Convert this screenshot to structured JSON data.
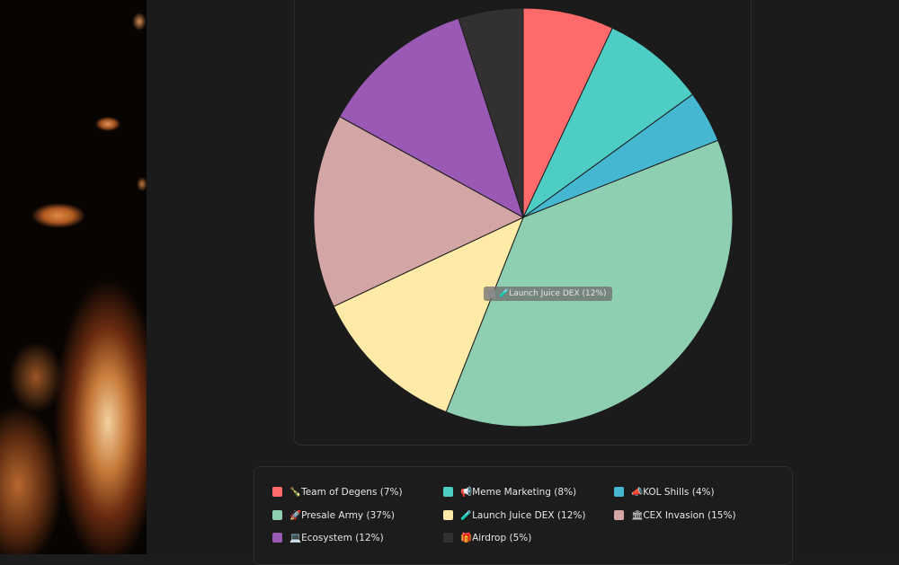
{
  "tooltip": {
    "text": "🧪Launch Juice DEX (12%)"
  },
  "chart_data": {
    "type": "pie",
    "title": "",
    "slices": [
      {
        "label": "🍾Team of Degens (7%)",
        "value": 7,
        "color": "#ff6b6b"
      },
      {
        "label": "📢Meme Marketing (8%)",
        "value": 8,
        "color": "#4ecdc4"
      },
      {
        "label": "📣KOL Shills (4%)",
        "value": 4,
        "color": "#45b7d1"
      },
      {
        "label": "🚀Presale Army (37%)",
        "value": 37,
        "color": "#8ecfb2"
      },
      {
        "label": "🧪Launch Juice DEX (12%)",
        "value": 12,
        "color": "#ffeaa7"
      },
      {
        "label": "🏛CEX Invasion (15%)",
        "value": 15,
        "color": "#d4a5a5"
      },
      {
        "label": "💻Ecosystem (12%)",
        "value": 12,
        "color": "#9b59b6"
      },
      {
        "label": "🎁Airdrop (5%)",
        "value": 5,
        "color": "#333031"
      }
    ],
    "legend_placement": "bottom"
  }
}
